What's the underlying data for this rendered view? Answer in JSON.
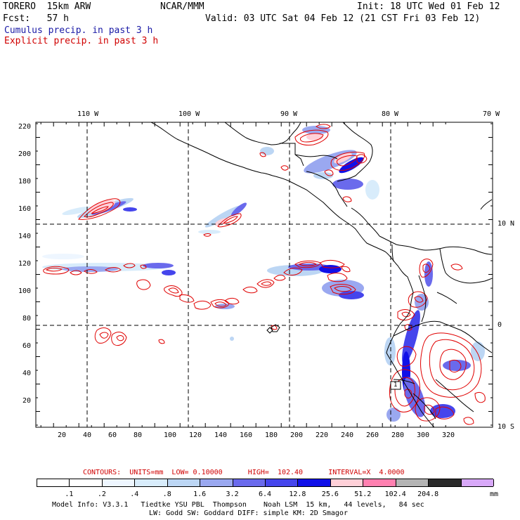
{
  "header": {
    "left1": "TORERO  15km ARW",
    "center1": "NCAR/MMM",
    "right1": "Init: 18 UTC Wed 01 Feb 12",
    "left2": "Fcst:   57 h",
    "right2": "Valid: 03 UTC Sat 04 Feb 12 (21 CST Fri 03 Feb 12)",
    "cumulus": "Cumulus precip. in past 3 h",
    "explicit": "Explicit precip. in past 3 h"
  },
  "map": {
    "lon_labels": [
      "110 W",
      "100 W",
      "90 W",
      "80 W",
      "70 W"
    ],
    "lat_labels": [
      "10 N",
      "0",
      "10 S"
    ],
    "y_ticks": [
      "220",
      "200",
      "180",
      "160",
      "140",
      "120",
      "100",
      "80",
      "60",
      "40",
      "20"
    ],
    "x_ticks": [
      "20",
      "40",
      "60",
      "80",
      "100",
      "120",
      "140",
      "160",
      "180",
      "200",
      "220",
      "240",
      "260",
      "280",
      "300",
      "320"
    ],
    "box_label": "1",
    "colors": {
      "coast": "#000000",
      "grid": "#000000",
      "explicit_contour": "#e00000",
      "cumulus_fill": "#2a2ae0"
    }
  },
  "legend": {
    "contours_line": "CONTOURS:  UNITS=mm  LOW= 0.10000      HIGH=  102.40      INTERVAL=X  4.0000",
    "units": "mm",
    "levels": [
      ".1",
      ".2",
      ".4",
      ".8",
      "1.6",
      "3.2",
      "6.4",
      "12.8",
      "25.6",
      "51.2",
      "102.4",
      "204.8"
    ],
    "colors": [
      "#ffffff",
      "#ffffff",
      "#eef6ff",
      "#d8ecfb",
      "#bcd6f4",
      "#9aa8f0",
      "#6a6aec",
      "#4545ec",
      "#1010e8",
      "#ffd0d8",
      "#ff80b0",
      "#b4b4b4",
      "#2a2a2a",
      "#d8a8f8"
    ]
  },
  "footer": {
    "line1": "Model Info: V3.3.1   Tiedtke YSU PBL  Thompson    Noah LSM  15 km,   44 levels,   84 sec",
    "line2": "LW: Godd SW: Goddard DIFF: simple KM: 2D Smagor"
  }
}
